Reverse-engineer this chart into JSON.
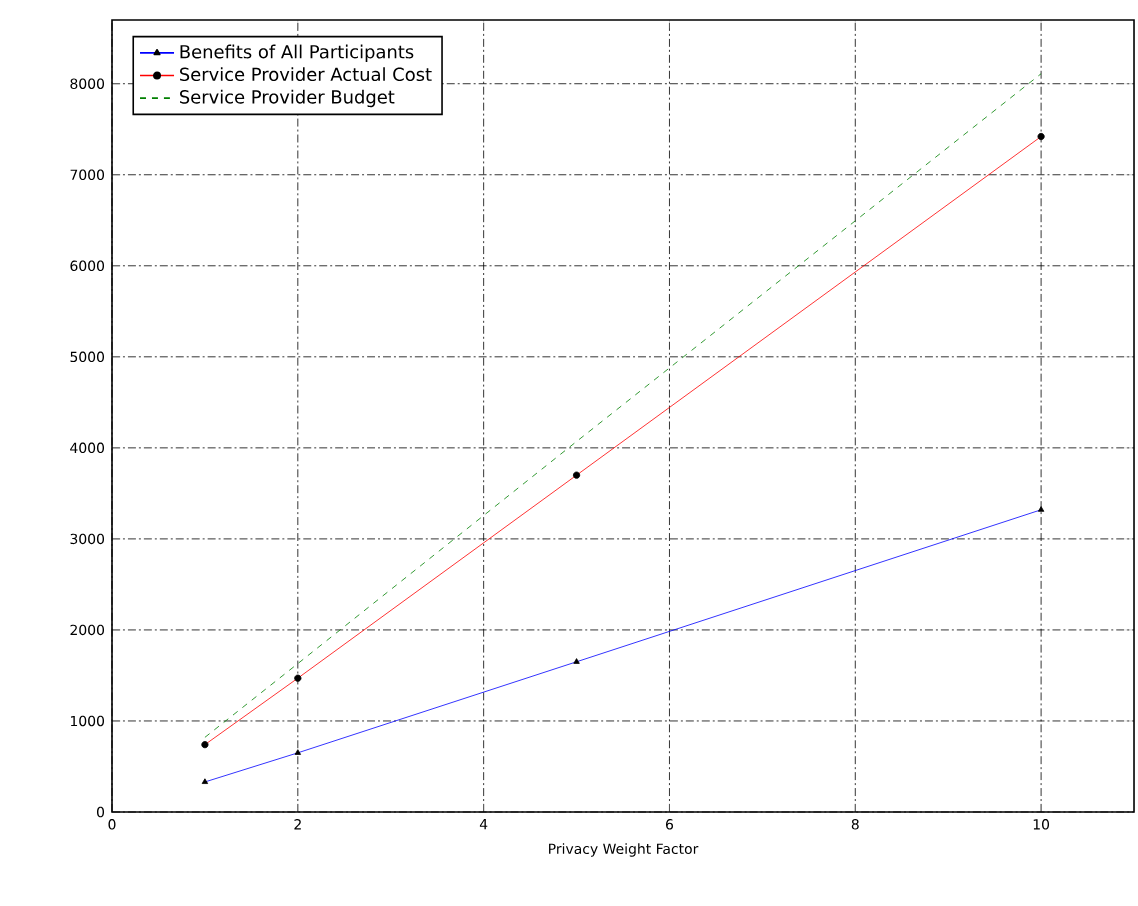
{
  "chart_data": {
    "type": "line",
    "xlabel": "Privacy Weight Factor",
    "x": [
      1,
      2,
      5,
      10
    ],
    "series": [
      {
        "name": "Benefits of All Participants",
        "color": "#0000ff",
        "values": [
          330,
          650,
          1650,
          3320
        ],
        "marker": "triangle",
        "line_style": "solid"
      },
      {
        "name": "Service Provider Actual Cost",
        "color": "#ff0000",
        "values": [
          740,
          1470,
          3700,
          7420
        ],
        "marker": "circle",
        "line_style": "solid"
      },
      {
        "name": "Service Provider Budget",
        "color": "#008000",
        "values": [
          820,
          1630,
          4070,
          8110
        ],
        "marker": "none",
        "line_style": "dashed"
      }
    ],
    "xlim": [
      0,
      11
    ],
    "ylim": [
      0,
      8700
    ],
    "xticks": [
      0,
      2,
      4,
      6,
      8,
      10
    ],
    "yticks": [
      0,
      1000,
      2000,
      3000,
      4000,
      5000,
      6000,
      7000,
      8000
    ],
    "grid": true,
    "legend": "top left"
  }
}
